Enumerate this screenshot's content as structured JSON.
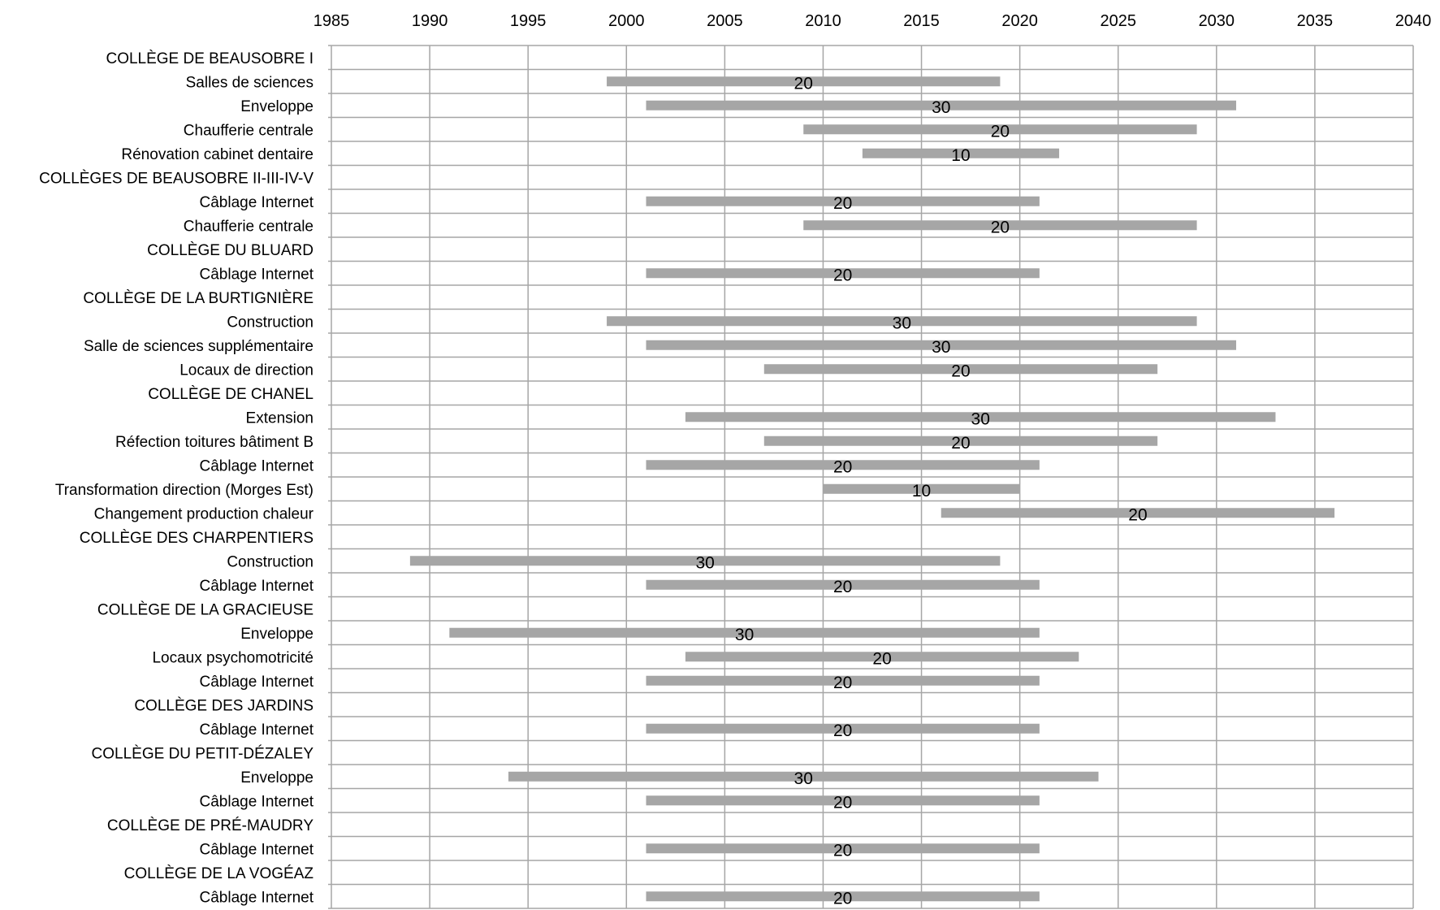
{
  "chart_data": {
    "type": "bar",
    "orientation": "horizontal-range",
    "title": "",
    "xlabel": "",
    "ylabel": "",
    "xlim": [
      1985,
      2040
    ],
    "x_ticks": [
      1985,
      1990,
      1995,
      2000,
      2005,
      2010,
      2015,
      2020,
      2025,
      2030,
      2035,
      2040
    ],
    "grid": true,
    "legend": "none",
    "bar_color": "#a6a6a6",
    "grid_color": "#a6a6a6",
    "rows": [
      {
        "label": "COLLÈGE DE BEAUSOBRE I"
      },
      {
        "label": "Salles de sciences",
        "start": 1999,
        "end": 2019,
        "value": "20"
      },
      {
        "label": "Enveloppe",
        "start": 2001,
        "end": 2031,
        "value": "30"
      },
      {
        "label": "Chaufferie centrale",
        "start": 2009,
        "end": 2029,
        "value": "20"
      },
      {
        "label": "Rénovation cabinet dentaire",
        "start": 2012,
        "end": 2022,
        "value": "10"
      },
      {
        "label": "COLLÈGES DE BEAUSOBRE II-III-IV-V"
      },
      {
        "label": "Câblage Internet",
        "start": 2001,
        "end": 2021,
        "value": "20"
      },
      {
        "label": "Chaufferie centrale",
        "start": 2009,
        "end": 2029,
        "value": "20"
      },
      {
        "label": "COLLÈGE DU BLUARD"
      },
      {
        "label": "Câblage Internet",
        "start": 2001,
        "end": 2021,
        "value": "20"
      },
      {
        "label": "COLLÈGE DE LA BURTIGNIÈRE"
      },
      {
        "label": "Construction",
        "start": 1999,
        "end": 2029,
        "value": "30"
      },
      {
        "label": "Salle de sciences supplémentaire",
        "start": 2001,
        "end": 2031,
        "value": "30"
      },
      {
        "label": "Locaux de direction",
        "start": 2007,
        "end": 2027,
        "value": "20"
      },
      {
        "label": "COLLÈGE DE CHANEL"
      },
      {
        "label": "Extension",
        "start": 2003,
        "end": 2033,
        "value": "30"
      },
      {
        "label": "Réfection toitures bâtiment B",
        "start": 2007,
        "end": 2027,
        "value": "20"
      },
      {
        "label": "Câblage Internet",
        "start": 2001,
        "end": 2021,
        "value": "20"
      },
      {
        "label": "Transformation direction (Morges Est)",
        "start": 2010,
        "end": 2020,
        "value": "10"
      },
      {
        "label": "Changement production chaleur",
        "start": 2016,
        "end": 2036,
        "value": "20"
      },
      {
        "label": "COLLÈGE DES CHARPENTIERS"
      },
      {
        "label": "Construction",
        "start": 1989,
        "end": 2019,
        "value": "30"
      },
      {
        "label": "Câblage Internet",
        "start": 2001,
        "end": 2021,
        "value": "20"
      },
      {
        "label": "COLLÈGE DE LA GRACIEUSE"
      },
      {
        "label": "Enveloppe",
        "start": 1991,
        "end": 2021,
        "value": "30"
      },
      {
        "label": "Locaux psychomotricité",
        "start": 2003,
        "end": 2023,
        "value": "20"
      },
      {
        "label": "Câblage Internet",
        "start": 2001,
        "end": 2021,
        "value": "20"
      },
      {
        "label": "COLLÈGE DES JARDINS"
      },
      {
        "label": "Câblage Internet",
        "start": 2001,
        "end": 2021,
        "value": "20"
      },
      {
        "label": "COLLÈGE DU PETIT-DÉZALEY"
      },
      {
        "label": "Enveloppe",
        "start": 1994,
        "end": 2024,
        "value": "30"
      },
      {
        "label": "Câblage Internet",
        "start": 2001,
        "end": 2021,
        "value": "20"
      },
      {
        "label": "COLLÈGE DE PRÉ-MAUDRY"
      },
      {
        "label": "Câblage Internet",
        "start": 2001,
        "end": 2021,
        "value": "20"
      },
      {
        "label": "COLLÈGE DE LA VOGÉAZ"
      },
      {
        "label": "Câblage Internet",
        "start": 2001,
        "end": 2021,
        "value": "20"
      }
    ]
  }
}
